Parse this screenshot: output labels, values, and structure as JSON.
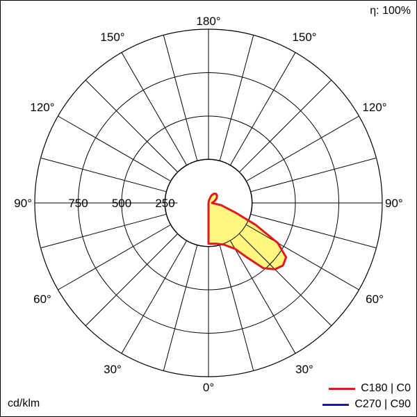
{
  "chart_data": {
    "type": "polar",
    "efficiency_label": "η: 100%",
    "unit_label": "cd/klm",
    "radial_ticks": [
      250,
      500,
      750
    ],
    "rmax": 1000,
    "angle_labels": {
      "top": "180°",
      "bottom": "0°",
      "left": "90°",
      "right": "90°",
      "left_side": [
        "150°",
        "120°",
        "60°",
        "30°"
      ],
      "right_side": [
        "150°",
        "120°",
        "60°",
        "30°"
      ]
    },
    "grid_step_deg": 15,
    "series": [
      {
        "name": "C180 | C0",
        "color": "#e0191e",
        "fill": "#fff780",
        "points": [
          {
            "angle": 0,
            "value": 235
          },
          {
            "angle": 10,
            "value": 238
          },
          {
            "angle": 20,
            "value": 255
          },
          {
            "angle": 30,
            "value": 305
          },
          {
            "angle": 35,
            "value": 380
          },
          {
            "angle": 40,
            "value": 490
          },
          {
            "angle": 45,
            "value": 540
          },
          {
            "angle": 50,
            "value": 560
          },
          {
            "angle": 55,
            "value": 545
          },
          {
            "angle": 60,
            "value": 460
          },
          {
            "angle": 65,
            "value": 300
          },
          {
            "angle": 70,
            "value": 170
          },
          {
            "angle": 80,
            "value": 75
          },
          {
            "angle": 90,
            "value": 20
          },
          {
            "angle": 100,
            "value": 28
          },
          {
            "angle": 110,
            "value": 40
          },
          {
            "angle": 120,
            "value": 54
          },
          {
            "angle": 130,
            "value": 64
          },
          {
            "angle": 140,
            "value": 68
          },
          {
            "angle": 150,
            "value": 62
          },
          {
            "angle": 160,
            "value": 44
          },
          {
            "angle": 170,
            "value": 16
          },
          {
            "angle": 180,
            "value": 0
          }
        ]
      },
      {
        "name": "C270 | C90",
        "color": "#1a1aa8"
      }
    ]
  }
}
